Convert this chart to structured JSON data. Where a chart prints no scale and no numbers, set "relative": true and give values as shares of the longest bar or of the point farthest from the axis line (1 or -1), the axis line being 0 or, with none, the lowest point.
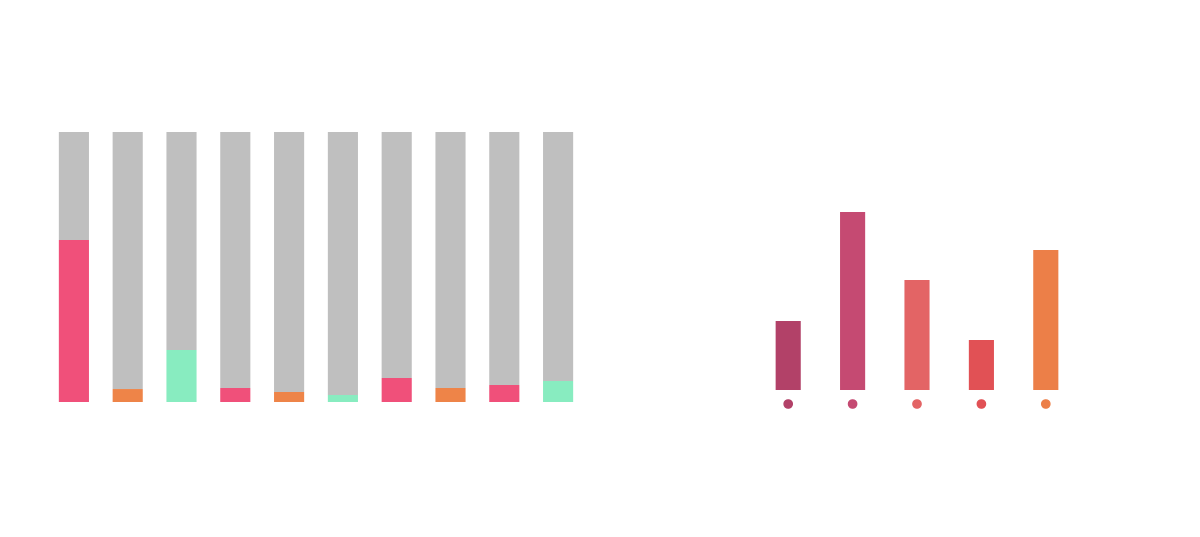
{
  "chart_data": [
    {
      "type": "bar",
      "relative": true,
      "stacked": true,
      "categories": [
        null,
        null,
        null,
        null,
        null,
        null,
        null,
        null,
        null,
        null
      ],
      "series": [
        {
          "colors": [
            "#f0507a",
            "#ee8448",
            "#88ecc0",
            "#f0507a",
            "#ee8448",
            "#88ecc0",
            "#f0507a",
            "#ee8448",
            "#f0507a",
            "#88ecc0"
          ],
          "values": [
            0.6,
            0.048,
            0.193,
            0.052,
            0.037,
            0.026,
            0.089,
            0.052,
            0.063,
            0.078
          ]
        },
        {
          "color": "#bfbfbf",
          "values": [
            0.4,
            0.952,
            0.807,
            0.948,
            0.963,
            0.974,
            0.911,
            0.948,
            0.937,
            0.922
          ]
        }
      ]
    },
    {
      "type": "bar",
      "relative": true,
      "categories": [
        null,
        null,
        null,
        null,
        null
      ],
      "values": [
        0.388,
        1,
        0.618,
        0.281,
        0.787
      ],
      "colors": [
        "#b24168",
        "#c54a72",
        "#e36465",
        "#e15155",
        "#ec7f48"
      ]
    }
  ]
}
